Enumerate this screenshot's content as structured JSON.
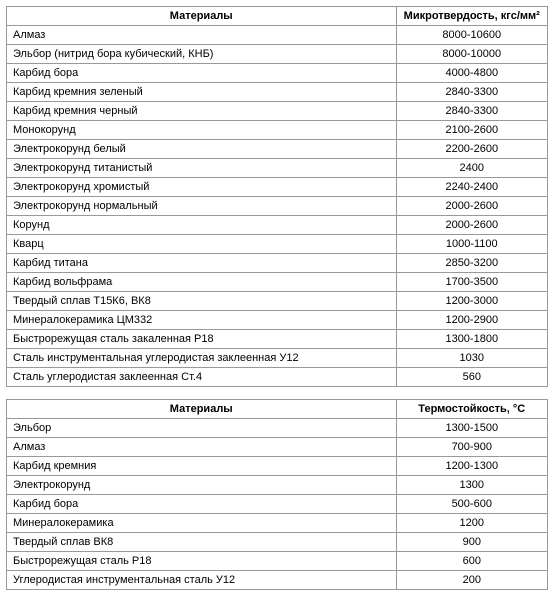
{
  "table1": {
    "columns": [
      "Материалы",
      "Микротвердость, кгс/мм²"
    ],
    "rows": [
      [
        "Алмаз",
        "8000-10600"
      ],
      [
        "Эльбор (нитрид бора кубический, КНБ)",
        "8000-10000"
      ],
      [
        "Карбид бора",
        "4000-4800"
      ],
      [
        "Карбид кремния зеленый",
        "2840-3300"
      ],
      [
        "Карбид кремния черный",
        "2840-3300"
      ],
      [
        "Монокорунд",
        "2100-2600"
      ],
      [
        "Электрокорунд белый",
        "2200-2600"
      ],
      [
        "Электрокорунд титанистый",
        "2400"
      ],
      [
        "Электрокорунд хромистый",
        "2240-2400"
      ],
      [
        "Электрокорунд нормальный",
        "2000-2600"
      ],
      [
        "Корунд",
        "2000-2600"
      ],
      [
        "Кварц",
        "1000-1100"
      ],
      [
        "Карбид титана",
        "2850-3200"
      ],
      [
        "Карбид вольфрама",
        "1700-3500"
      ],
      [
        "Твердый сплав Т15К6, ВК8",
        "1200-3000"
      ],
      [
        "Минералокерамика ЦМ332",
        "1200-2900"
      ],
      [
        "Быстрорежущая сталь закаленная Р18",
        "1300-1800"
      ],
      [
        "Сталь инструментальная углеродистая заклеенная У12",
        "1030"
      ],
      [
        "Сталь углеродистая заклеенная Ст.4",
        "560"
      ]
    ]
  },
  "table2": {
    "columns": [
      "Материалы",
      "Термостойкость, °С"
    ],
    "rows": [
      [
        "Эльбор",
        "1300-1500"
      ],
      [
        "Алмаз",
        "700-900"
      ],
      [
        "Карбид кремния",
        "1200-1300"
      ],
      [
        "Электрокорунд",
        "1300"
      ],
      [
        "Карбид бора",
        "500-600"
      ],
      [
        "Минералокерамика",
        "1200"
      ],
      [
        "Твердый сплав ВК8",
        "900"
      ],
      [
        "Быстрорежущая сталь Р18",
        "600"
      ],
      [
        "Углеродистая инструментальная сталь У12",
        "200"
      ]
    ]
  }
}
